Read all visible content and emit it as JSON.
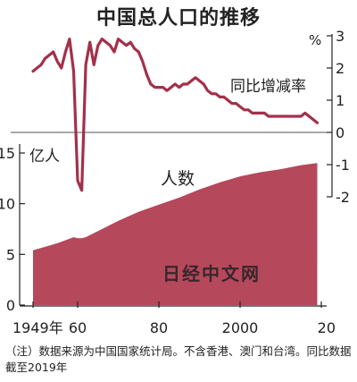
{
  "title": "中国总人口的推移",
  "footnote": "（注）数据来源为中国国家统计局。不含香港、澳门和台湾。同比数据截至2019年",
  "watermark": "日经中文网",
  "colors": {
    "area": "#b5485b",
    "line": "#a3304a",
    "text": "#222222"
  },
  "chart_data": {
    "type": "area",
    "x_ticks": [
      "1949年",
      "60",
      "80",
      "2000",
      "20"
    ],
    "x_range": [
      1949,
      2020
    ],
    "population": {
      "name": "人数",
      "unit": "亿人",
      "ylim": [
        0,
        15
      ],
      "y_ticks": [
        0,
        5,
        10,
        15
      ],
      "x": [
        1949,
        1955,
        1959,
        1960,
        1961,
        1962,
        1965,
        1970,
        1975,
        1980,
        1985,
        1990,
        1995,
        2000,
        2005,
        2010,
        2015,
        2019
      ],
      "values": [
        5.4,
        6.1,
        6.7,
        6.6,
        6.6,
        6.7,
        7.3,
        8.3,
        9.2,
        9.9,
        10.6,
        11.4,
        12.1,
        12.7,
        13.1,
        13.4,
        13.8,
        14.0
      ]
    },
    "growth_rate": {
      "name": "同比增减率",
      "unit": "%",
      "ylim": [
        -2,
        3
      ],
      "y_ticks": [
        3,
        2,
        1,
        0,
        -1,
        -2
      ],
      "x": [
        1949,
        1950,
        1951,
        1952,
        1953,
        1954,
        1955,
        1956,
        1957,
        1958,
        1959,
        1960,
        1961,
        1962,
        1963,
        1964,
        1965,
        1966,
        1967,
        1968,
        1969,
        1970,
        1971,
        1972,
        1973,
        1974,
        1975,
        1976,
        1977,
        1978,
        1979,
        1980,
        1981,
        1982,
        1983,
        1984,
        1985,
        1986,
        1987,
        1988,
        1989,
        1990,
        1991,
        1992,
        1993,
        1994,
        1995,
        1996,
        1997,
        1998,
        1999,
        2000,
        2001,
        2002,
        2003,
        2004,
        2005,
        2006,
        2007,
        2008,
        2009,
        2010,
        2011,
        2012,
        2013,
        2014,
        2015,
        2016,
        2017,
        2018,
        2019
      ],
      "values": [
        1.9,
        2.0,
        2.1,
        2.3,
        2.4,
        2.5,
        2.2,
        2.0,
        2.5,
        2.9,
        1.9,
        -1.5,
        -1.8,
        2.1,
        2.8,
        2.1,
        2.7,
        2.9,
        2.8,
        2.7,
        2.5,
        2.9,
        2.8,
        2.7,
        2.8,
        2.6,
        2.5,
        2.2,
        1.8,
        1.5,
        1.4,
        1.4,
        1.4,
        1.3,
        1.4,
        1.5,
        1.4,
        1.5,
        1.5,
        1.6,
        1.7,
        1.6,
        1.5,
        1.3,
        1.2,
        1.2,
        1.1,
        1.1,
        1.0,
        0.9,
        0.9,
        0.8,
        0.7,
        0.7,
        0.6,
        0.6,
        0.6,
        0.6,
        0.5,
        0.5,
        0.5,
        0.5,
        0.5,
        0.5,
        0.5,
        0.5,
        0.5,
        0.6,
        0.5,
        0.4,
        0.3
      ]
    }
  }
}
